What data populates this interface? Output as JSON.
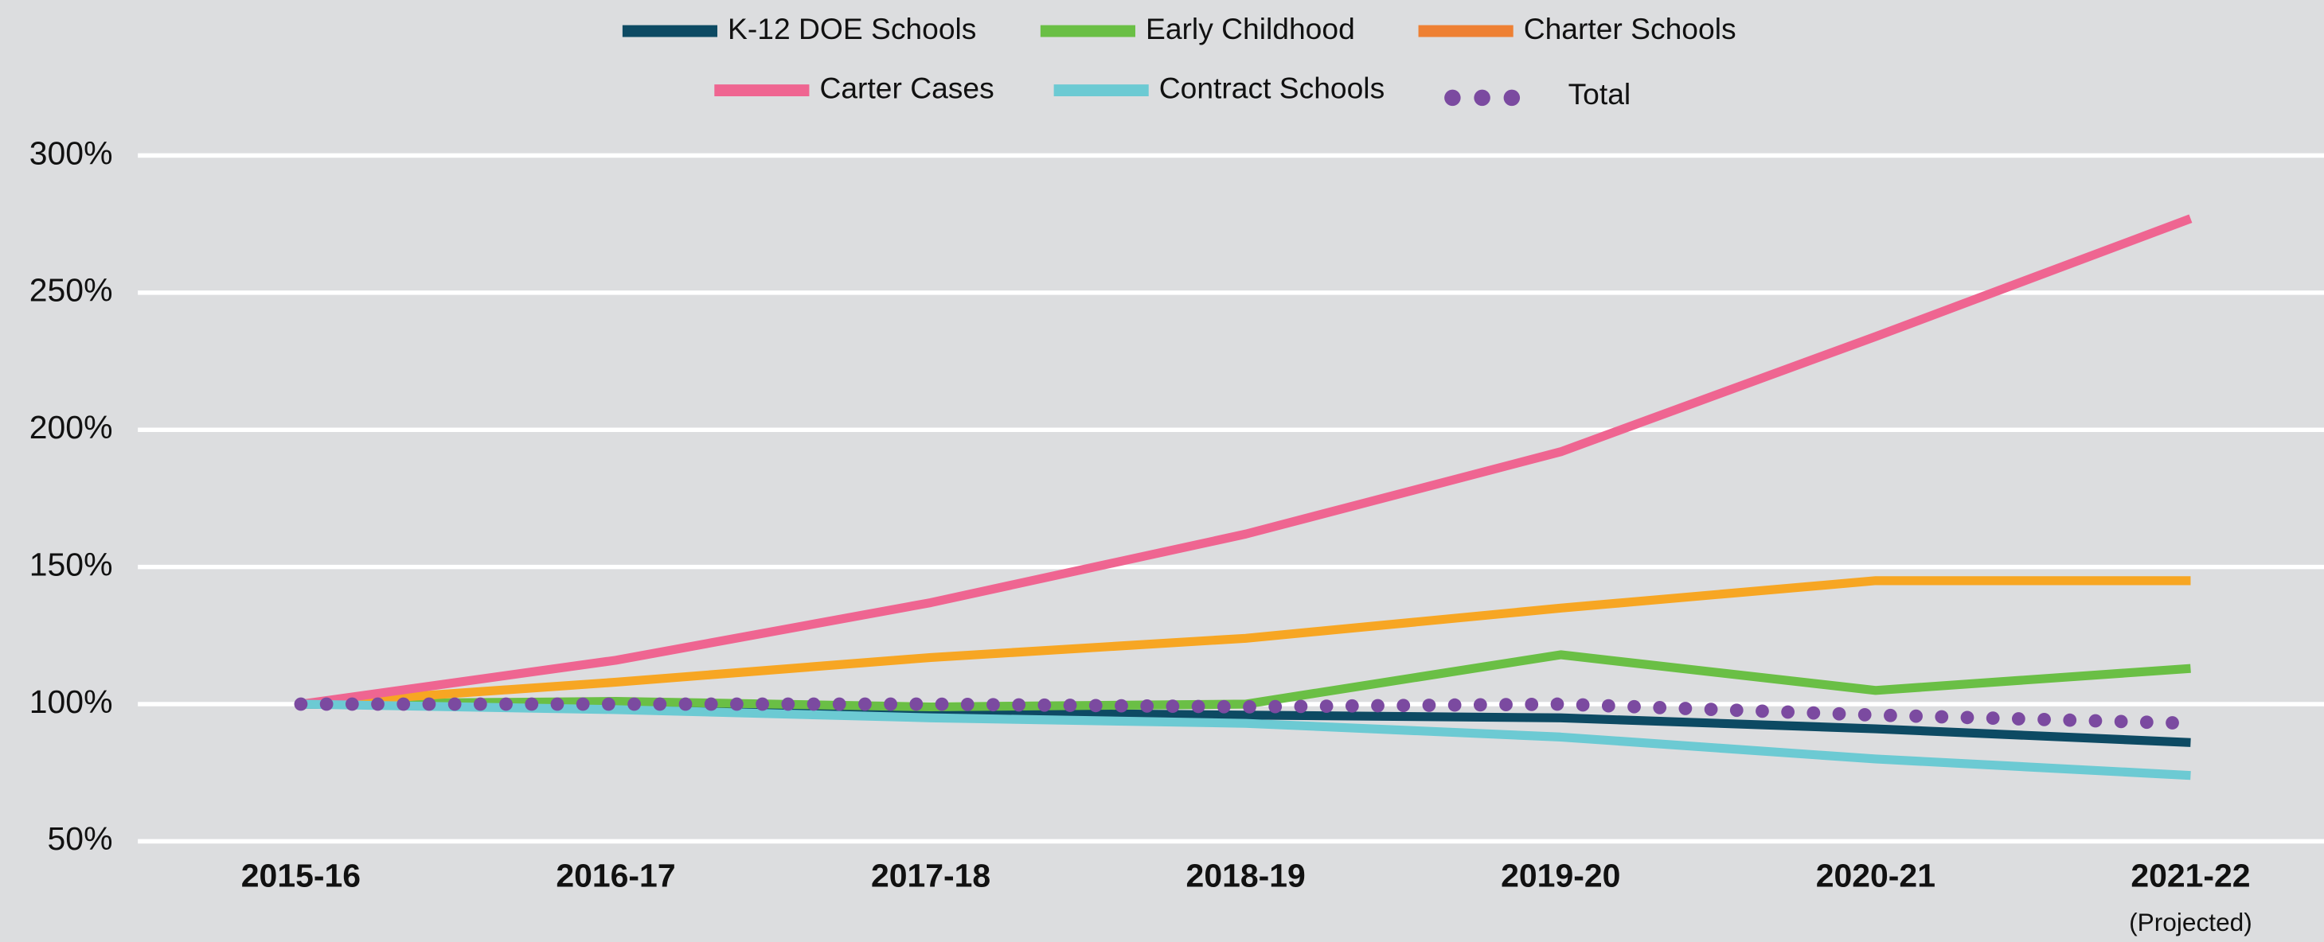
{
  "chart_data": {
    "type": "line",
    "categories": [
      "2015-16",
      "2016-17",
      "2017-18",
      "2018-19",
      "2019-20",
      "2020-21",
      "2021-22"
    ],
    "x_annotation": "(Projected)",
    "series": [
      {
        "name": "K-12 DOE Schools",
        "color": "#0d4a63",
        "values": [
          100,
          99,
          97,
          96,
          95,
          91,
          86
        ]
      },
      {
        "name": "Early Childhood",
        "color": "#6abf45",
        "values": [
          100,
          101,
          99,
          100,
          118,
          105,
          113
        ]
      },
      {
        "name": "Charter Schools",
        "color": "#f7a623",
        "legend_color": "#ee8033",
        "values": [
          100,
          108,
          117,
          124,
          135,
          145,
          145
        ]
      },
      {
        "name": "Carter Cases",
        "color": "#ef6591",
        "values": [
          100,
          116,
          137,
          162,
          192,
          234,
          277
        ]
      },
      {
        "name": "Contract Schools",
        "color": "#6ccad3",
        "values": [
          100,
          98,
          95,
          93,
          88,
          80,
          74
        ]
      },
      {
        "name": "Total",
        "color": "#7b4aa0",
        "dotted": true,
        "values": [
          100,
          100,
          100,
          99,
          100,
          96,
          93
        ]
      }
    ],
    "ylim": [
      50,
      300
    ],
    "yticks": [
      {
        "value": 50,
        "label": "50%"
      },
      {
        "value": 100,
        "label": "100%"
      },
      {
        "value": 150,
        "label": "150%"
      },
      {
        "value": 200,
        "label": "200%"
      },
      {
        "value": 250,
        "label": "250%"
      },
      {
        "value": 300,
        "label": "300%"
      }
    ],
    "grid": true
  }
}
